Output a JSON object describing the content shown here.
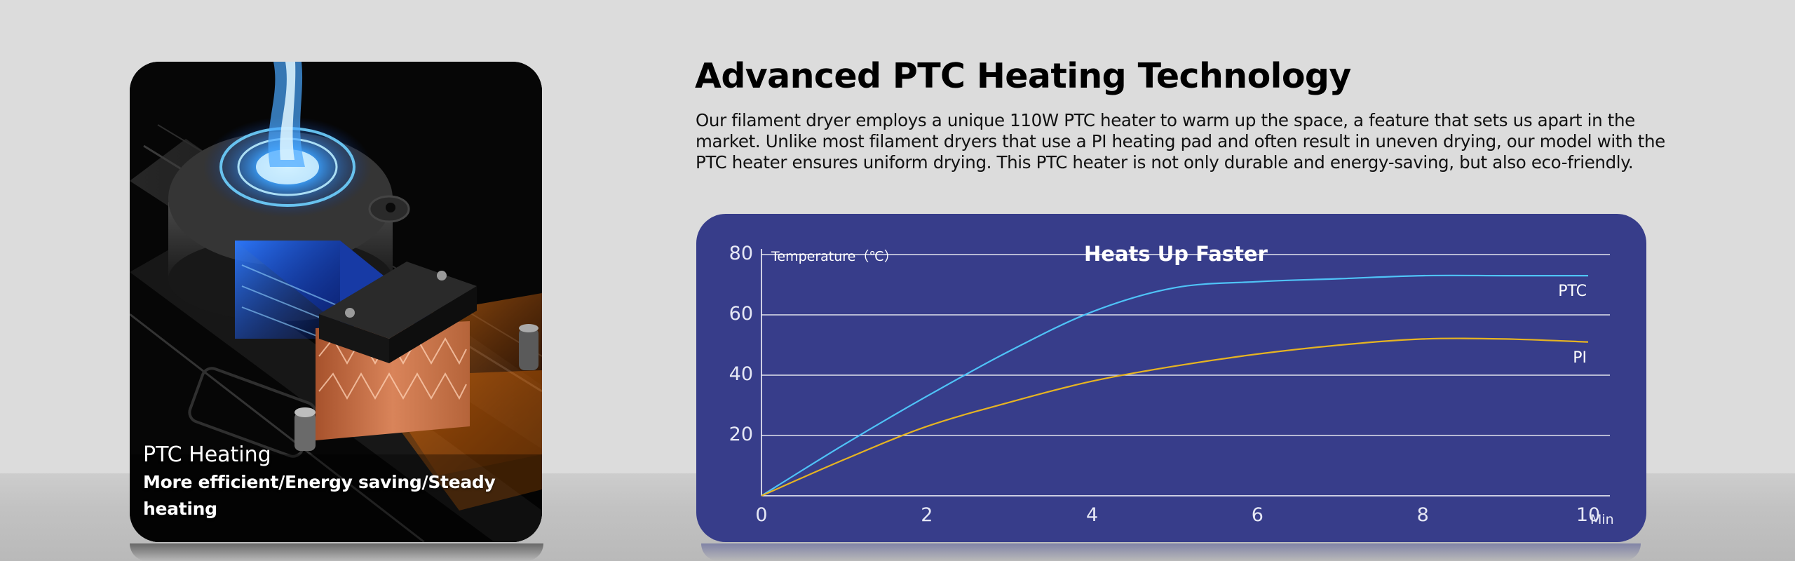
{
  "card": {
    "title": "PTC Heating",
    "subtitle": "More efficient/Energy saving/Steady heating"
  },
  "headline": "Advanced PTC Heating Technology",
  "paragraph": "Our filament dryer employs a unique 110W PTC heater to warm up the space, a feature that sets us apart in the market. Unlike most filament dryers that use a PI heating pad and often result in uneven drying, our model with the PTC heater ensures uniform drying. This PTC heater is not only durable and energy-saving, but also eco-friendly.",
  "colors": {
    "panel": "#373d8a",
    "ptc": "#4fc3f7",
    "pi": "#e6b422",
    "background": "#dcdcdc"
  },
  "chart_data": {
    "type": "line",
    "title": "Heats Up Faster",
    "ylabel": "Temperature（℃）",
    "xlabel": "",
    "x_unit": "Min",
    "xlim": [
      0,
      10
    ],
    "ylim": [
      0,
      80
    ],
    "x_ticks": [
      "0",
      "2",
      "4",
      "6",
      "8",
      "10"
    ],
    "y_ticks": [
      "20",
      "40",
      "60",
      "80"
    ],
    "grid": true,
    "legend": "inline-right",
    "series": [
      {
        "name": "PTC",
        "color": "#4fc3f7",
        "x": [
          0,
          1,
          2,
          3,
          4,
          5,
          6,
          7,
          8,
          9,
          10
        ],
        "y": [
          0,
          17,
          33,
          48,
          61,
          69,
          71,
          72,
          73,
          73,
          73
        ]
      },
      {
        "name": "PI",
        "color": "#e6b422",
        "x": [
          0,
          1,
          2,
          3,
          4,
          5,
          6,
          7,
          8,
          9,
          10
        ],
        "y": [
          0,
          12,
          23,
          31,
          38,
          43,
          47,
          50,
          52,
          52,
          51
        ]
      }
    ]
  }
}
